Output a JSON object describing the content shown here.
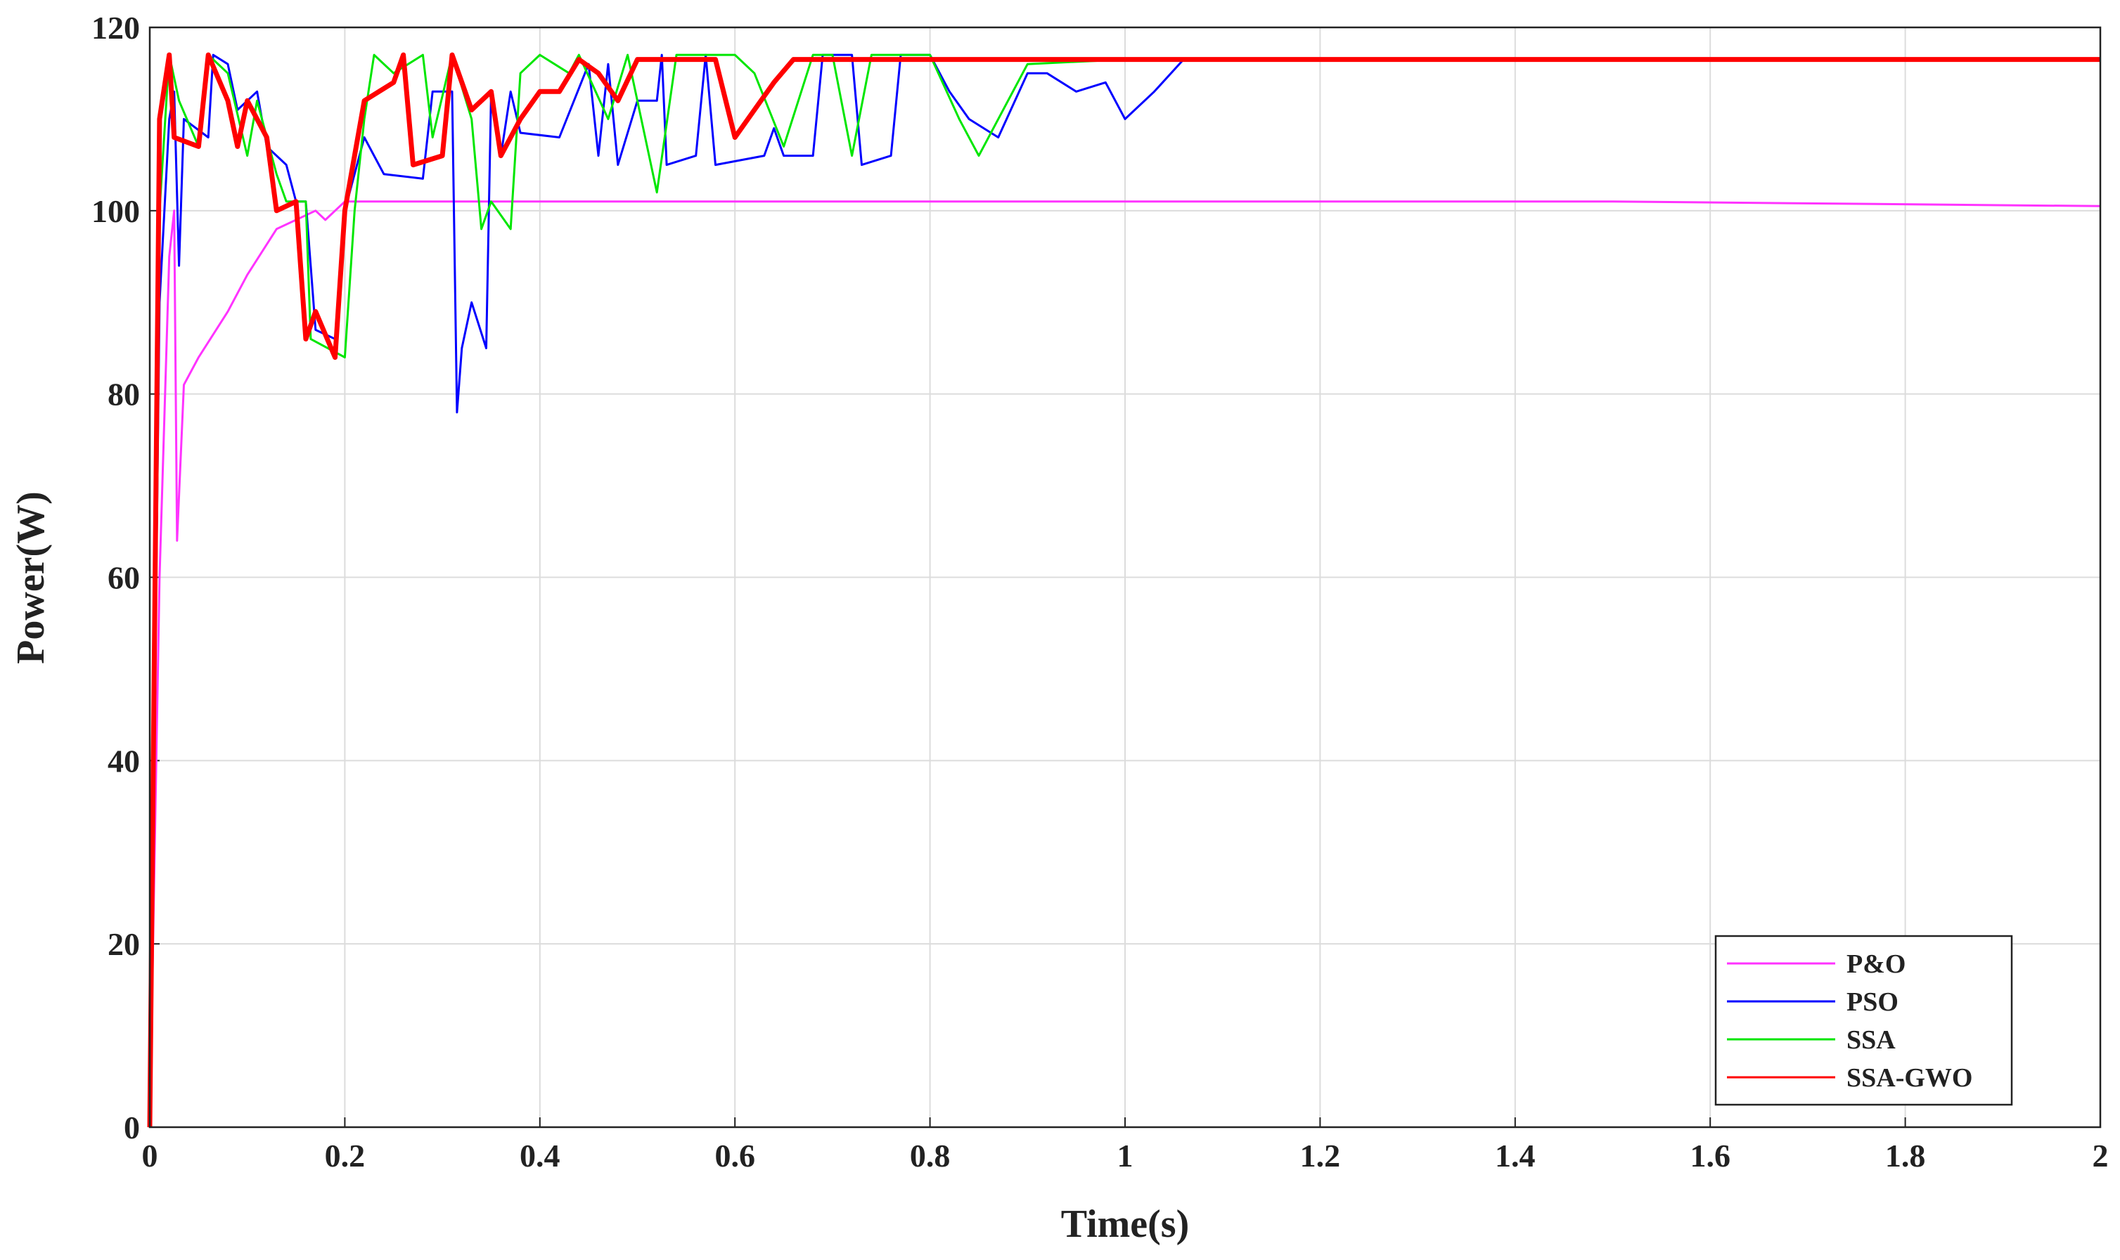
{
  "chart_data": {
    "type": "line",
    "xlabel": "Time(s)",
    "ylabel": "Power(W)",
    "xlim": [
      0,
      2
    ],
    "ylim": [
      0,
      120
    ],
    "xticks": [
      0,
      0.2,
      0.4,
      0.6,
      0.8,
      1,
      1.2,
      1.4,
      1.6,
      1.8,
      2
    ],
    "yticks": [
      0,
      20,
      40,
      60,
      80,
      100,
      120
    ],
    "grid": true,
    "legend": "lower right",
    "series": [
      {
        "name": "P&O",
        "color": "#ff33ff",
        "x": [
          0,
          0.01,
          0.02,
          0.025,
          0.028,
          0.035,
          0.05,
          0.08,
          0.1,
          0.13,
          0.17,
          0.18,
          0.2,
          0.3,
          0.5,
          1,
          1.5,
          2
        ],
        "values": [
          0,
          60,
          95,
          100,
          64,
          81,
          84,
          89,
          93,
          98,
          100,
          99,
          101,
          101,
          101,
          101,
          101,
          100.5
        ]
      },
      {
        "name": "PSO",
        "color": "#0000ff",
        "x": [
          0,
          0.01,
          0.02,
          0.025,
          0.03,
          0.035,
          0.06,
          0.065,
          0.08,
          0.09,
          0.1,
          0.11,
          0.12,
          0.14,
          0.15,
          0.16,
          0.17,
          0.19,
          0.2,
          0.22,
          0.24,
          0.28,
          0.29,
          0.31,
          0.315,
          0.32,
          0.33,
          0.345,
          0.35,
          0.36,
          0.37,
          0.38,
          0.42,
          0.45,
          0.46,
          0.47,
          0.48,
          0.5,
          0.52,
          0.525,
          0.53,
          0.56,
          0.57,
          0.58,
          0.63,
          0.64,
          0.65,
          0.68,
          0.69,
          0.72,
          0.73,
          0.76,
          0.77,
          0.8,
          0.82,
          0.84,
          0.87,
          0.9,
          0.92,
          0.95,
          0.98,
          1.0,
          1.03,
          1.06,
          1.2,
          2
        ],
        "values": [
          0,
          90,
          110,
          113,
          94,
          110,
          108,
          117,
          116,
          111,
          112,
          113,
          107,
          105,
          101,
          101,
          87,
          86,
          100,
          108,
          104,
          103.5,
          113,
          113,
          78,
          85,
          90,
          85,
          113,
          106,
          113,
          108.5,
          108,
          116,
          106,
          116,
          105,
          112,
          112,
          117,
          105,
          106,
          117,
          105,
          106,
          109,
          106,
          106,
          117,
          117,
          105,
          106,
          117,
          117,
          113,
          110,
          108,
          115,
          115,
          113,
          114,
          110,
          113,
          116.5,
          116.5,
          116.5
        ]
      },
      {
        "name": "SSA",
        "color": "#00e600",
        "x": [
          0,
          0.01,
          0.02,
          0.03,
          0.05,
          0.06,
          0.08,
          0.1,
          0.11,
          0.13,
          0.14,
          0.16,
          0.165,
          0.2,
          0.21,
          0.22,
          0.23,
          0.25,
          0.28,
          0.29,
          0.31,
          0.33,
          0.34,
          0.35,
          0.37,
          0.38,
          0.4,
          0.43,
          0.44,
          0.47,
          0.49,
          0.52,
          0.54,
          0.57,
          0.6,
          0.62,
          0.65,
          0.68,
          0.7,
          0.72,
          0.74,
          0.8,
          0.83,
          0.85,
          0.87,
          0.9,
          1.0,
          2
        ],
        "values": [
          0,
          100,
          117,
          112,
          107,
          117,
          115,
          106,
          112,
          104,
          101,
          101,
          86,
          84,
          100,
          110,
          117,
          115,
          117,
          108,
          117,
          110,
          98,
          101,
          98,
          115,
          117,
          115,
          117,
          110,
          117,
          102,
          117,
          117,
          117,
          115,
          107,
          117,
          117,
          106,
          117,
          117,
          110,
          106,
          110,
          116,
          116.5,
          116.5
        ]
      },
      {
        "name": "SSA-GWO",
        "color": "#ff0000",
        "x": [
          0,
          0.01,
          0.02,
          0.025,
          0.05,
          0.06,
          0.08,
          0.09,
          0.1,
          0.12,
          0.13,
          0.15,
          0.16,
          0.17,
          0.19,
          0.2,
          0.22,
          0.25,
          0.26,
          0.27,
          0.3,
          0.31,
          0.33,
          0.35,
          0.36,
          0.38,
          0.4,
          0.42,
          0.44,
          0.46,
          0.48,
          0.5,
          0.58,
          0.6,
          0.62,
          0.64,
          0.66,
          2
        ],
        "values": [
          0,
          110,
          117,
          108,
          107,
          117,
          112,
          107,
          112,
          108,
          100,
          101,
          86,
          89,
          84,
          100,
          112,
          114,
          117,
          105,
          106,
          117,
          111,
          113,
          106,
          110,
          113,
          113,
          116.5,
          115,
          112,
          116.5,
          116.5,
          108,
          111,
          114,
          116.5,
          116.5
        ]
      }
    ]
  }
}
